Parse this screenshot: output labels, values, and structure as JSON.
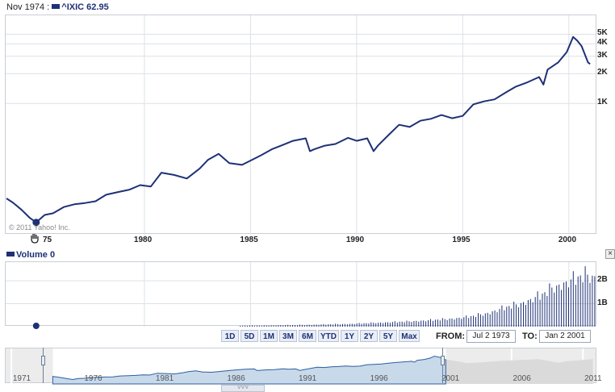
{
  "legend": {
    "date": "Nov 1974 :",
    "symbol": "^IXIC",
    "value": "62.95",
    "volume_label": "Volume",
    "volume_value": "0"
  },
  "copyright": "© 2011 Yahoo! Inc.",
  "x_ticks": [
    "1980",
    "1985",
    "1990",
    "1995",
    "2000"
  ],
  "x_tick_partial": "75",
  "y_ticks": [
    "5K",
    "4K",
    "3K",
    "2K",
    "1K"
  ],
  "volume_ticks": [
    "2B",
    "1B"
  ],
  "range_buttons": [
    "1D",
    "5D",
    "1M",
    "3M",
    "6M",
    "YTD",
    "1Y",
    "2Y",
    "5Y",
    "Max"
  ],
  "from_label": "FROM:",
  "from_value": "Jul 2 1973",
  "to_label": "TO:",
  "to_value": "Jan 2 2001",
  "close_icon": "×",
  "navigator_years": [
    "1971",
    "1976",
    "1981",
    "1986",
    "1991",
    "1996",
    "2001",
    "2006",
    "2011"
  ],
  "colors": {
    "line": "#1e3176",
    "volume": "#1e3176",
    "navigator_fill": "#c8d9ea",
    "navigator_line": "#2c5f9e",
    "grid": "#dde1e6"
  },
  "chart_data": {
    "type": "line",
    "title": "",
    "xlabel": "",
    "ylabel": "",
    "y_scale": "log",
    "x_range": [
      "Jul 2 1973",
      "Jan 2 2001"
    ],
    "series": [
      {
        "name": "^IXIC",
        "x": [
          1973.5,
          1973.8,
          1974.2,
          1974.6,
          1974.9,
          1975.3,
          1975.7,
          1976.2,
          1976.7,
          1977.2,
          1977.7,
          1978.2,
          1978.8,
          1979.3,
          1979.8,
          1980.3,
          1980.8,
          1981.4,
          1982.0,
          1982.6,
          1983.0,
          1983.5,
          1984.0,
          1984.6,
          1985.0,
          1985.5,
          1986.0,
          1986.5,
          1987.0,
          1987.6,
          1987.8,
          1988.0,
          1988.5,
          1989.0,
          1989.6,
          1990.0,
          1990.5,
          1990.8,
          1991.0,
          1991.5,
          1992.0,
          1992.5,
          1993.0,
          1993.5,
          1994.0,
          1994.5,
          1995.0,
          1995.5,
          1996.0,
          1996.5,
          1997.0,
          1997.5,
          1998.0,
          1998.6,
          1998.8,
          1999.0,
          1999.5,
          1999.9,
          2000.2,
          2000.4,
          2000.6,
          2000.9,
          2001.0
        ],
        "values": [
          110,
          100,
          85,
          70,
          63,
          75,
          78,
          90,
          96,
          99,
          103,
          120,
          128,
          135,
          150,
          145,
          200,
          190,
          175,
          220,
          270,
          310,
          250,
          240,
          265,
          300,
          345,
          380,
          420,
          445,
          330,
          345,
          375,
          390,
          450,
          420,
          445,
          330,
          375,
          480,
          610,
          580,
          670,
          700,
          765,
          710,
          750,
          980,
          1050,
          1100,
          1280,
          1480,
          1620,
          1850,
          1550,
          2200,
          2600,
          3300,
          4700,
          4300,
          3800,
          2600,
          2500
        ]
      }
    ],
    "volume_series": {
      "name": "Volume",
      "note": "daily volume bars from 1984 onward",
      "start_year": 1984.5,
      "values_B": [
        0.04,
        0.05,
        0.05,
        0.06,
        0.07,
        0.07,
        0.08,
        0.09,
        0.1,
        0.11,
        0.12,
        0.14,
        0.16,
        0.18,
        0.2,
        0.22,
        0.24,
        0.27,
        0.3,
        0.33,
        0.37,
        0.42,
        0.5,
        0.6,
        0.75,
        0.9,
        1.0,
        1.2,
        1.4,
        1.7,
        1.9,
        2.1,
        2.3,
        2.2
      ]
    }
  }
}
